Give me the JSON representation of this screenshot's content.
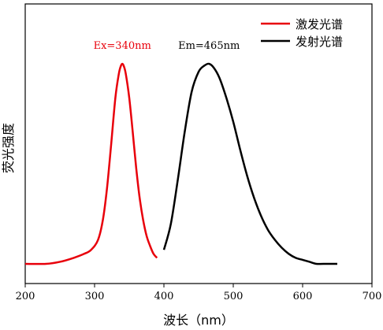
{
  "chart_data": {
    "type": "line",
    "xlabel": "波长（nm）",
    "ylabel": "荧光强度",
    "xlim": [
      200,
      700
    ],
    "ylim": [
      0,
      1.12
    ],
    "xticks": [
      200,
      300,
      400,
      500,
      600,
      700
    ],
    "grid": false,
    "legend_position": "top-right",
    "series": [
      {
        "name": "激发光谱",
        "color": "#e8000b",
        "x": [
          200,
          230,
          250,
          270,
          285,
          295,
          305,
          312,
          318,
          324,
          330,
          335,
          338,
          340,
          342,
          345,
          350,
          355,
          360,
          365,
          370,
          375,
          380,
          385,
          390
        ],
        "y": [
          0.0,
          0.0,
          0.01,
          0.03,
          0.05,
          0.07,
          0.12,
          0.22,
          0.38,
          0.6,
          0.83,
          0.95,
          0.99,
          1.0,
          0.99,
          0.95,
          0.83,
          0.66,
          0.48,
          0.33,
          0.22,
          0.14,
          0.09,
          0.05,
          0.03
        ]
      },
      {
        "name": "发射光谱",
        "color": "#000000",
        "x": [
          400,
          410,
          420,
          430,
          440,
          450,
          458,
          465,
          472,
          480,
          490,
          500,
          510,
          520,
          530,
          540,
          550,
          560,
          570,
          580,
          590,
          600,
          610,
          620,
          630,
          650
        ],
        "y": [
          0.07,
          0.2,
          0.42,
          0.66,
          0.86,
          0.96,
          0.99,
          1.0,
          0.98,
          0.93,
          0.83,
          0.71,
          0.57,
          0.44,
          0.33,
          0.24,
          0.17,
          0.12,
          0.08,
          0.05,
          0.03,
          0.02,
          0.01,
          0.0,
          0.0,
          0.0
        ]
      }
    ],
    "annotations": [
      {
        "text": "Ex=340nm",
        "x": 340,
        "y": 1.06,
        "color": "#e8000b"
      },
      {
        "text": "Em=465nm",
        "x": 465,
        "y": 1.06,
        "color": "#000000"
      }
    ]
  }
}
